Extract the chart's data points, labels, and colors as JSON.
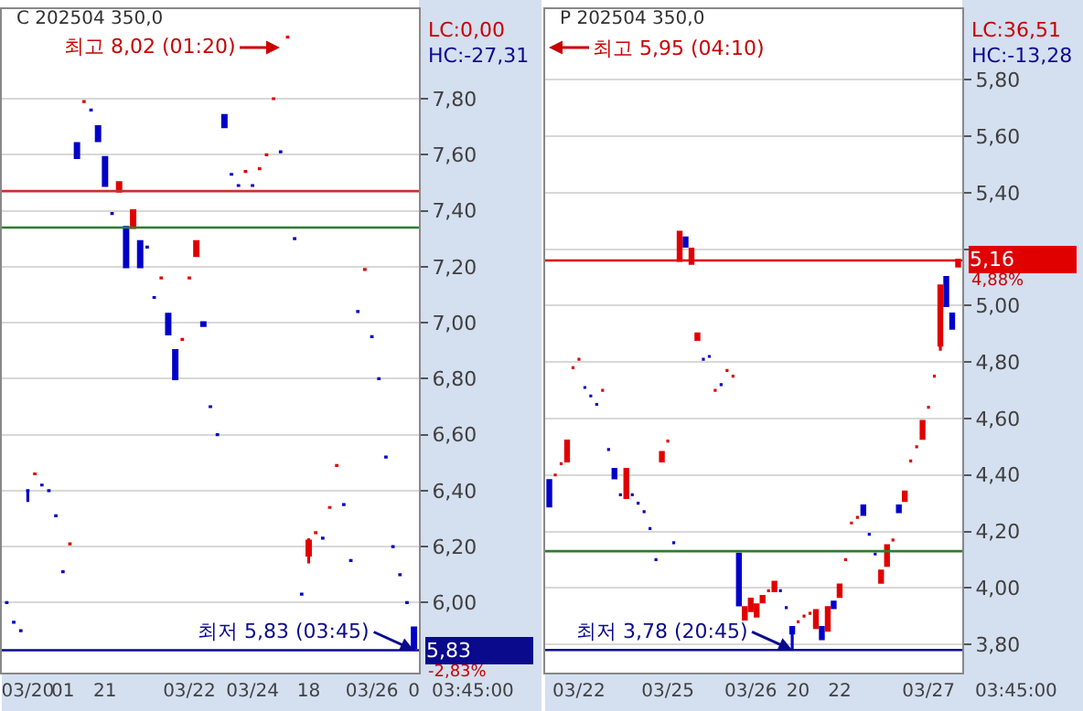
{
  "chart_data": [
    {
      "type": "candlestick",
      "title": "C 202504 350,0",
      "grid": "y",
      "categories": [
        null,
        null,
        null,
        "03/20",
        null,
        null,
        null,
        null,
        "01",
        null,
        null,
        null,
        null,
        null,
        "21",
        null,
        null,
        null,
        null,
        null,
        null,
        null,
        null,
        null,
        null,
        null,
        "03/22",
        null,
        null,
        null,
        null,
        null,
        null,
        null,
        null,
        "03/24",
        null,
        null,
        null,
        null,
        null,
        null,
        null,
        "18",
        null,
        null,
        null,
        null,
        null,
        null,
        null,
        null,
        "03/26",
        null,
        null,
        null,
        null,
        null,
        "0"
      ],
      "ohlc": [
        [
          6.0,
          6.0,
          6.0,
          6.0
        ],
        [
          5.93,
          5.93,
          5.93,
          5.93
        ],
        [
          5.9,
          5.9,
          5.9,
          5.9
        ],
        [
          6.4,
          6.4,
          6.36,
          6.4
        ],
        [
          6.46,
          6.46,
          6.46,
          6.46
        ],
        [
          6.42,
          6.42,
          6.42,
          6.42
        ],
        [
          6.4,
          6.4,
          6.4,
          6.4
        ],
        [
          6.31,
          6.31,
          6.31,
          6.31
        ],
        [
          6.11,
          6.11,
          6.11,
          6.11
        ],
        [
          6.21,
          6.21,
          6.21,
          6.21
        ],
        [
          7.64,
          7.64,
          7.59,
          7.59
        ],
        [
          7.79,
          7.79,
          7.79,
          7.79
        ],
        [
          7.76,
          7.76,
          7.76,
          7.76
        ],
        [
          7.7,
          7.7,
          7.65,
          7.65
        ],
        [
          7.59,
          7.59,
          7.49,
          7.49
        ],
        [
          7.39,
          7.39,
          7.39,
          7.39
        ],
        [
          7.47,
          7.5,
          7.47,
          7.5
        ],
        [
          7.34,
          7.34,
          7.2,
          7.2
        ],
        [
          7.34,
          7.4,
          7.34,
          7.4
        ],
        [
          7.29,
          7.29,
          7.2,
          7.2
        ],
        [
          7.27,
          7.27,
          7.27,
          7.27
        ],
        [
          7.09,
          7.09,
          7.09,
          7.09
        ],
        [
          7.16,
          7.16,
          7.16,
          7.16
        ],
        [
          7.03,
          7.03,
          6.96,
          6.96
        ],
        [
          6.9,
          6.9,
          6.8,
          6.8
        ],
        [
          6.94,
          6.94,
          6.94,
          6.94
        ],
        [
          7.16,
          7.16,
          7.16,
          7.16
        ],
        [
          7.24,
          7.29,
          7.24,
          7.29
        ],
        [
          7.0,
          7.0,
          6.99,
          6.99
        ],
        [
          6.7,
          6.7,
          6.7,
          6.7
        ],
        [
          6.6,
          6.6,
          6.6,
          6.6
        ],
        [
          7.74,
          7.74,
          7.7,
          7.7
        ],
        [
          7.53,
          7.53,
          7.53,
          7.53
        ],
        [
          7.49,
          7.49,
          7.49,
          7.49
        ],
        [
          7.54,
          7.54,
          7.54,
          7.54
        ],
        [
          7.49,
          7.49,
          7.49,
          7.49
        ],
        [
          7.55,
          7.55,
          7.55,
          7.55
        ],
        [
          7.6,
          7.6,
          7.6,
          7.6
        ],
        [
          7.8,
          7.8,
          7.8,
          7.8
        ],
        [
          7.61,
          7.61,
          7.61,
          7.61
        ],
        [
          8.02,
          8.02,
          8.02,
          8.02
        ],
        [
          7.3,
          7.3,
          7.3,
          7.3
        ],
        [
          6.03,
          6.03,
          6.03,
          6.03
        ],
        [
          6.17,
          6.23,
          6.14,
          6.22
        ],
        [
          6.25,
          6.25,
          6.25,
          6.25
        ],
        [
          6.23,
          6.23,
          6.23,
          6.23
        ],
        [
          6.34,
          6.34,
          6.34,
          6.34
        ],
        [
          6.49,
          6.49,
          6.49,
          6.49
        ],
        [
          6.35,
          6.35,
          6.35,
          6.35
        ],
        [
          6.15,
          6.15,
          6.15,
          6.15
        ],
        [
          7.04,
          7.04,
          7.04,
          7.04
        ],
        [
          7.19,
          7.19,
          7.19,
          7.19
        ],
        [
          6.95,
          6.95,
          6.95,
          6.95
        ],
        [
          6.8,
          6.8,
          6.8,
          6.8
        ],
        [
          6.52,
          6.52,
          6.52,
          6.52
        ],
        [
          6.2,
          6.2,
          6.2,
          6.2
        ],
        [
          6.1,
          6.1,
          6.1,
          6.1
        ],
        [
          6.0,
          6.0,
          6.0,
          6.0
        ],
        [
          5.91,
          5.91,
          5.83,
          5.84
        ]
      ],
      "colors": [
        "#0000c8",
        "#0000c8",
        "#0000c8",
        "#0000c8",
        "#e00000",
        "#0000c8",
        "#0000c8",
        "#0000c8",
        "#0000c8",
        "#e00000",
        "#0000c8",
        "#e00000",
        "#0000c8",
        "#0000c8",
        "#0000c8",
        "#0000c8",
        "#e00000",
        "#0000c8",
        "#e00000",
        "#0000c8",
        "#0000c8",
        "#0000c8",
        "#e00000",
        "#0000c8",
        "#0000c8",
        "#e00000",
        "#e00000",
        "#e00000",
        "#0000c8",
        "#0000c8",
        "#0000c8",
        "#0000c8",
        "#0000c8",
        "#0000c8",
        "#e00000",
        "#0000c8",
        "#e00000",
        "#e00000",
        "#e00000",
        "#0000c8",
        "#e00000",
        "#0000c8",
        "#0000c8",
        "#e00000",
        "#e00000",
        "#0000c8",
        "#e00000",
        "#e00000",
        "#0000c8",
        "#0000c8",
        "#0000c8",
        "#e00000",
        "#0000c8",
        "#0000c8",
        "#0000c8",
        "#0000c8",
        "#0000c8",
        "#0000c8",
        "#0000c8"
      ],
      "ylim": [
        5.75,
        8.12
      ],
      "yticks": [
        {
          "value": 6.0,
          "label": "6,00"
        },
        {
          "value": 6.2,
          "label": "6,20"
        },
        {
          "value": 6.4,
          "label": "6,40"
        },
        {
          "value": 6.6,
          "label": "6,60"
        },
        {
          "value": 6.8,
          "label": "6,80"
        },
        {
          "value": 7.0,
          "label": "7,00"
        },
        {
          "value": 7.2,
          "label": "7,20"
        },
        {
          "value": 7.4,
          "label": "7,40"
        },
        {
          "value": 7.6,
          "label": "7,60"
        },
        {
          "value": 7.8,
          "label": "7,80"
        }
      ],
      "ref_lines": [
        {
          "axis": "y",
          "value": 7.47,
          "color": "#c83232"
        },
        {
          "axis": "y",
          "value": 7.34,
          "color": "#2e7d2e"
        },
        {
          "axis": "y",
          "value": 5.83,
          "color": "#0a0a8c",
          "label": "5,83"
        }
      ],
      "annotations": [
        "최고 8,02 (01:20)",
        {
          "text": "최저 5,83 (03:45)",
          "y": 5.83
        },
        "LC:0,00",
        "HC:-27,31",
        "-2,83%",
        "03:45:00"
      ]
    },
    {
      "type": "candlestick",
      "title": "P 202504 350,0",
      "grid": "y",
      "categories": [
        null,
        null,
        null,
        null,
        null,
        "03/22",
        null,
        null,
        null,
        null,
        null,
        null,
        null,
        null,
        null,
        null,
        null,
        null,
        null,
        null,
        "03/25",
        null,
        null,
        null,
        null,
        null,
        null,
        null,
        null,
        null,
        null,
        null,
        null,
        null,
        "03/26",
        null,
        null,
        null,
        null,
        null,
        null,
        null,
        "20",
        null,
        null,
        null,
        null,
        null,
        null,
        "22",
        null,
        null,
        null,
        null,
        null,
        null,
        null,
        null,
        null,
        null,
        null,
        null,
        null,
        null,
        "03/27",
        null,
        null,
        null,
        null,
        null
      ],
      "ohlc": [
        [
          4.38,
          4.38,
          4.29,
          4.29
        ],
        [
          4.4,
          4.4,
          4.4,
          4.4
        ],
        [
          4.44,
          4.44,
          4.44,
          4.44
        ],
        [
          4.45,
          4.52,
          4.45,
          4.52
        ],
        [
          4.78,
          4.78,
          4.78,
          4.78
        ],
        [
          4.81,
          4.81,
          4.81,
          4.81
        ],
        [
          4.71,
          4.71,
          4.71,
          4.71
        ],
        [
          4.68,
          4.68,
          4.68,
          4.68
        ],
        [
          4.65,
          4.65,
          4.65,
          4.65
        ],
        [
          4.7,
          4.7,
          4.7,
          4.7
        ],
        [
          4.49,
          4.49,
          4.49,
          4.49
        ],
        [
          4.42,
          4.42,
          4.39,
          4.39
        ],
        [
          4.33,
          4.33,
          4.33,
          4.33
        ],
        [
          4.32,
          4.42,
          4.32,
          4.42
        ],
        [
          4.33,
          4.33,
          4.33,
          4.33
        ],
        [
          4.3,
          4.3,
          4.3,
          4.3
        ],
        [
          4.27,
          4.27,
          4.27,
          4.27
        ],
        [
          4.21,
          4.21,
          4.21,
          4.21
        ],
        [
          4.1,
          4.1,
          4.1,
          4.1
        ],
        [
          4.45,
          4.48,
          4.45,
          4.48
        ],
        [
          4.52,
          4.52,
          4.52,
          4.52
        ],
        [
          4.16,
          4.16,
          4.16,
          4.16
        ],
        [
          5.16,
          5.26,
          5.16,
          5.26
        ],
        [
          5.24,
          5.24,
          5.21,
          5.21
        ],
        [
          5.15,
          5.2,
          5.15,
          5.2
        ],
        [
          4.88,
          4.9,
          4.88,
          4.9
        ],
        [
          4.81,
          4.81,
          4.81,
          4.81
        ],
        [
          4.82,
          4.82,
          4.82,
          4.82
        ],
        [
          4.7,
          4.7,
          4.7,
          4.7
        ],
        [
          4.72,
          4.72,
          4.72,
          4.72
        ],
        [
          4.77,
          4.77,
          4.77,
          4.77
        ],
        [
          4.75,
          4.75,
          4.75,
          4.75
        ],
        [
          4.12,
          4.12,
          3.94,
          3.94
        ],
        [
          3.89,
          3.93,
          3.89,
          3.93
        ],
        [
          3.92,
          3.96,
          3.92,
          3.96
        ],
        [
          3.9,
          3.94,
          3.9,
          3.94
        ],
        [
          3.95,
          3.97,
          3.95,
          3.97
        ],
        [
          3.99,
          3.99,
          3.99,
          3.99
        ],
        [
          3.99,
          4.02,
          3.99,
          4.02
        ],
        [
          3.99,
          3.99,
          3.99,
          3.99
        ],
        [
          3.93,
          3.93,
          3.93,
          3.93
        ],
        [
          3.86,
          3.86,
          3.78,
          3.84
        ],
        [
          3.88,
          3.88,
          3.88,
          3.88
        ],
        [
          3.9,
          3.9,
          3.9,
          3.9
        ],
        [
          3.91,
          3.91,
          3.91,
          3.91
        ],
        [
          3.86,
          3.92,
          3.86,
          3.92
        ],
        [
          3.86,
          3.86,
          3.82,
          3.82
        ],
        [
          3.85,
          3.93,
          3.85,
          3.93
        ],
        [
          3.95,
          3.95,
          3.93,
          3.93
        ],
        [
          3.97,
          4.01,
          3.97,
          4.01
        ],
        [
          4.1,
          4.1,
          4.1,
          4.1
        ],
        [
          4.23,
          4.23,
          4.23,
          4.23
        ],
        [
          4.25,
          4.25,
          4.25,
          4.25
        ],
        [
          4.29,
          4.29,
          4.26,
          4.26
        ],
        [
          4.19,
          4.19,
          4.19,
          4.19
        ],
        [
          4.12,
          4.12,
          4.12,
          4.12
        ],
        [
          4.02,
          4.06,
          4.02,
          4.06
        ],
        [
          4.08,
          4.15,
          4.08,
          4.15
        ],
        [
          4.17,
          4.17,
          4.17,
          4.17
        ],
        [
          4.29,
          4.29,
          4.27,
          4.27
        ],
        [
          4.31,
          4.34,
          4.31,
          4.34
        ],
        [
          4.45,
          4.45,
          4.45,
          4.45
        ],
        [
          4.5,
          4.5,
          4.5,
          4.5
        ],
        [
          4.53,
          4.59,
          4.53,
          4.59
        ],
        [
          4.64,
          4.64,
          4.64,
          4.64
        ],
        [
          4.75,
          4.75,
          4.75,
          4.75
        ],
        [
          4.86,
          5.07,
          4.84,
          5.07
        ],
        [
          5.1,
          5.1,
          5.0,
          5.0
        ],
        [
          4.97,
          4.97,
          4.92,
          4.92
        ],
        [
          5.14,
          5.16,
          5.14,
          5.16
        ]
      ],
      "colors": [
        "#0000c8",
        "#e00000",
        "#e00000",
        "#e00000",
        "#e00000",
        "#e00000",
        "#0000c8",
        "#0000c8",
        "#0000c8",
        "#e00000",
        "#0000c8",
        "#0000c8",
        "#0000c8",
        "#e00000",
        "#0000c8",
        "#0000c8",
        "#0000c8",
        "#0000c8",
        "#0000c8",
        "#e00000",
        "#e00000",
        "#0000c8",
        "#e00000",
        "#0000c8",
        "#e00000",
        "#e00000",
        "#0000c8",
        "#0000c8",
        "#e00000",
        "#0000c8",
        "#e00000",
        "#e00000",
        "#0000c8",
        "#e00000",
        "#e00000",
        "#e00000",
        "#e00000",
        "#e00000",
        "#e00000",
        "#0000c8",
        "#0000c8",
        "#0000c8",
        "#e00000",
        "#e00000",
        "#e00000",
        "#e00000",
        "#0000c8",
        "#e00000",
        "#0000c8",
        "#e00000",
        "#e00000",
        "#e00000",
        "#e00000",
        "#0000c8",
        "#0000c8",
        "#0000c8",
        "#e00000",
        "#e00000",
        "#e00000",
        "#0000c8",
        "#e00000",
        "#e00000",
        "#e00000",
        "#e00000",
        "#e00000",
        "#e00000",
        "#e00000",
        "#0000c8",
        "#0000c8",
        "#e00000"
      ],
      "ylim": [
        3.7,
        6.05
      ],
      "yticks": [
        {
          "value": 3.8,
          "label": "3,80"
        },
        {
          "value": 4.0,
          "label": "4,00"
        },
        {
          "value": 4.2,
          "label": "4,20"
        },
        {
          "value": 4.4,
          "label": "4,40"
        },
        {
          "value": 4.6,
          "label": "4,60"
        },
        {
          "value": 4.8,
          "label": "4,80"
        },
        {
          "value": 5.0,
          "label": "5,00"
        },
        {
          "value": 5.2,
          "label": null
        },
        {
          "value": 5.4,
          "label": "5,40"
        },
        {
          "value": 5.6,
          "label": "5,60"
        },
        {
          "value": 5.8,
          "label": "5,80"
        }
      ],
      "ref_lines": [
        {
          "axis": "y",
          "value": 5.16,
          "color": "#e00000",
          "label": "5,16"
        },
        {
          "axis": "y",
          "value": 4.13,
          "color": "#2e7d2e"
        },
        {
          "axis": "y",
          "value": 3.78,
          "color": "#0a0a8c"
        }
      ],
      "annotations": [
        "최고 5,95 (04:10)",
        {
          "text": "최저 3,78 (20:45)",
          "y": 3.78
        },
        "LC:36,51",
        "HC:-13,28",
        "4,88%",
        "03:45:00"
      ]
    }
  ]
}
